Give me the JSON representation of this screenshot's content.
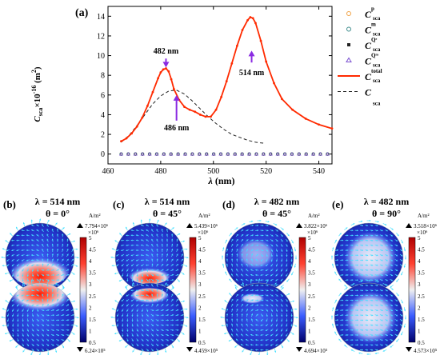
{
  "panel_a": {
    "label": "(a)",
    "ylabel_main": "C",
    "ylabel_sub": "sca",
    "ylabel_rest": "×10",
    "ylabel_exp": "-16",
    "ylabel_unit": " (m",
    "ylabel_unit_exp": "2",
    "ylabel_close": ")",
    "xlabel_sym": "λ",
    "xlabel_unit": " (nm)",
    "annotations": [
      {
        "text": "482 nm",
        "x": 482,
        "y": 10.2,
        "arrow_from": 9.7,
        "arrow_to": 8.8
      },
      {
        "text": "486 nm",
        "x": 486,
        "y": 2.4,
        "arrow_from": 3.4,
        "arrow_to": 6.0
      },
      {
        "text": "514 nm",
        "x": 514.5,
        "y": 8.0,
        "arrow_from": 9.3,
        "arrow_to": 10.5
      }
    ],
    "legend": [
      {
        "main": "C",
        "sup": "p",
        "sub": "sca",
        "color": "#f0a040",
        "marker": "circle"
      },
      {
        "main": "C",
        "sup": "m",
        "sub": "sca",
        "color": "#3a8a8a",
        "marker": "circle"
      },
      {
        "main": "C",
        "sup": "Qᵉ",
        "sub": "sca",
        "color": "#222222",
        "marker": "square"
      },
      {
        "main": "C",
        "sup": "Qᵐ",
        "sub": "sca",
        "color": "#7a4fd0",
        "marker": "triangle"
      },
      {
        "main": "C",
        "sup": "total",
        "sub": "sca",
        "color": "#ff2a00",
        "marker": "line"
      },
      {
        "main": "C",
        "sup": "",
        "sub": "sca",
        "color": "#222222",
        "marker": "dash"
      }
    ]
  },
  "chart_data": {
    "type": "line",
    "xlabel": "λ (nm)",
    "ylabel": "Csca×10^-16 (m^2)",
    "xlim": [
      460,
      545
    ],
    "ylim": [
      -1,
      15
    ],
    "xticks": [
      460,
      480,
      500,
      520,
      540
    ],
    "yticks": [
      0,
      2,
      4,
      6,
      8,
      10,
      12,
      14
    ],
    "series": [
      {
        "name": "C total sca",
        "color": "#ff2a00",
        "x": [
          465,
          467,
          469,
          471,
          473,
          475,
          477,
          479,
          480,
          481,
          482,
          483,
          484,
          485,
          487,
          489,
          491,
          493,
          495,
          497,
          499,
          501,
          503,
          505,
          507,
          509,
          511,
          513,
          514,
          515,
          516,
          518,
          520,
          523,
          526,
          530,
          535,
          540,
          545
        ],
        "y": [
          1.3,
          1.6,
          2.1,
          2.8,
          3.7,
          4.9,
          6.3,
          7.7,
          8.3,
          8.6,
          8.7,
          8.4,
          7.6,
          6.6,
          5.5,
          4.8,
          4.5,
          4.3,
          4.0,
          3.8,
          3.8,
          4.5,
          5.8,
          7.4,
          9.2,
          11.0,
          12.6,
          13.6,
          13.9,
          13.8,
          13.3,
          11.5,
          9.4,
          7.2,
          5.6,
          4.5,
          3.6,
          3.0,
          2.6
        ]
      },
      {
        "name": "C sca",
        "color": "#222222",
        "x": [
          465,
          468,
          471,
          474,
          477,
          480,
          483,
          486,
          489,
          492,
          495,
          498,
          501,
          504,
          507,
          510,
          513,
          516,
          519
        ],
        "y": [
          1.2,
          1.9,
          2.9,
          4.0,
          5.1,
          5.9,
          6.4,
          6.5,
          6.1,
          5.4,
          4.6,
          3.8,
          3.1,
          2.5,
          2.0,
          1.7,
          1.4,
          1.2,
          1.1
        ]
      },
      {
        "name": "C p sca",
        "color": "#f0a040",
        "x": [
          465,
          545
        ],
        "y": [
          0,
          0
        ]
      },
      {
        "name": "C m sca",
        "color": "#3a8a8a",
        "x": [
          465,
          545
        ],
        "y": [
          0,
          0
        ]
      },
      {
        "name": "C Qe sca",
        "color": "#222222",
        "x": [
          465,
          545
        ],
        "y": [
          0,
          0
        ]
      },
      {
        "name": "C Qm sca",
        "color": "#7a4fd0",
        "x": [
          465,
          545
        ],
        "y": [
          0,
          0
        ]
      }
    ]
  },
  "field_panels": [
    {
      "label": "(b)",
      "lambda_text": "λ = 514 nm",
      "theta_text": "θ = 0°",
      "max_text": "7.794×10⁶",
      "mult_text": "×10⁶",
      "min_text": "6.24×10⁵",
      "unit": "A/m²",
      "mode": "bottom"
    },
    {
      "label": "(c)",
      "lambda_text": "λ = 514 nm",
      "theta_text": "θ = 45°",
      "max_text": "5.439×10⁶",
      "mult_text": "×10⁶",
      "min_text": "4.459×10⁵",
      "unit": "A/m²",
      "mode": "bottom-small"
    },
    {
      "label": "(d)",
      "lambda_text": "λ = 482 nm",
      "theta_text": "θ = 45°",
      "max_text": "3.822×10⁶",
      "mult_text": "×10⁶",
      "min_text": "4.694×10⁵",
      "unit": "A/m²",
      "mode": "swirl"
    },
    {
      "label": "(e)",
      "lambda_text": "λ = 482 nm",
      "theta_text": "θ = 90°",
      "max_text": "3.518×10⁶",
      "mult_text": "×10⁶",
      "min_text": "4.573×10⁵",
      "unit": "A/m²",
      "mode": "center"
    }
  ],
  "colorbar_ticks": [
    "5",
    "4.5",
    "4",
    "3.5",
    "3",
    "2.5",
    "2",
    "1.5",
    "1",
    "0.5"
  ]
}
